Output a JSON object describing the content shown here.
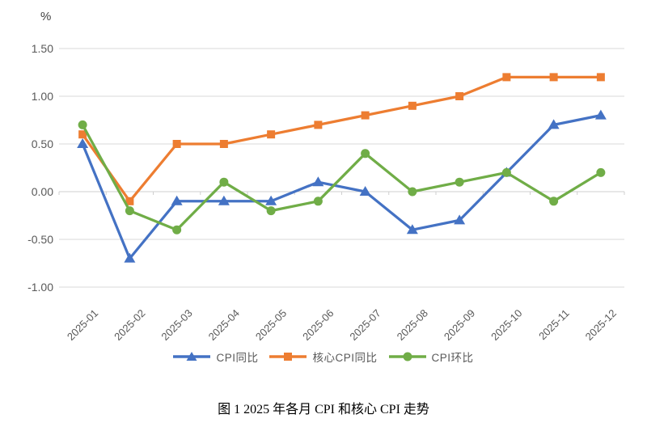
{
  "figure": {
    "unit_label": "%",
    "caption": "图 1  2025 年各月 CPI 和核心 CPI 走势"
  },
  "chart_data": {
    "type": "line",
    "title": "图 1  2025 年各月 CPI 和核心 CPI 走势",
    "xlabel": "",
    "ylabel": "%",
    "categories": [
      "2025-01",
      "2025-02",
      "2025-03",
      "2025-04",
      "2025-05",
      "2025-06",
      "2025-07",
      "2025-08",
      "2025-09",
      "2025-10",
      "2025-11",
      "2025-12"
    ],
    "series": [
      {
        "name": "CPI同比",
        "marker": "triangle",
        "color": "#4472C4",
        "values": [
          0.5,
          -0.7,
          -0.1,
          -0.1,
          -0.1,
          0.1,
          0.0,
          -0.4,
          -0.3,
          0.2,
          0.7,
          0.8
        ]
      },
      {
        "name": "核心CPI同比",
        "marker": "square",
        "color": "#ED7D31",
        "values": [
          0.6,
          -0.1,
          0.5,
          0.5,
          0.6,
          0.7,
          0.8,
          0.9,
          1.0,
          1.2,
          1.2,
          1.2
        ]
      },
      {
        "name": "CPI环比",
        "marker": "circle",
        "color": "#70AD47",
        "values": [
          0.7,
          -0.2,
          -0.4,
          0.1,
          -0.2,
          -0.1,
          0.4,
          0.0,
          0.1,
          0.2,
          -0.1,
          0.2
        ]
      }
    ],
    "ylim": [
      -1.0,
      1.5
    ],
    "ytick_step": 0.5,
    "ytick_labels": [
      "1.50",
      "1.00",
      "0.50",
      "0.00",
      "-0.50",
      "-1.00"
    ],
    "grid": true,
    "legend_position": "bottom",
    "style": {
      "grid_color": "#D9D9D9",
      "axis_color": "#CFCFCF",
      "tick_label_color": "#595959",
      "unit_label_color": "#404040",
      "caption_color": "#000000",
      "background": "#FFFFFF"
    }
  }
}
